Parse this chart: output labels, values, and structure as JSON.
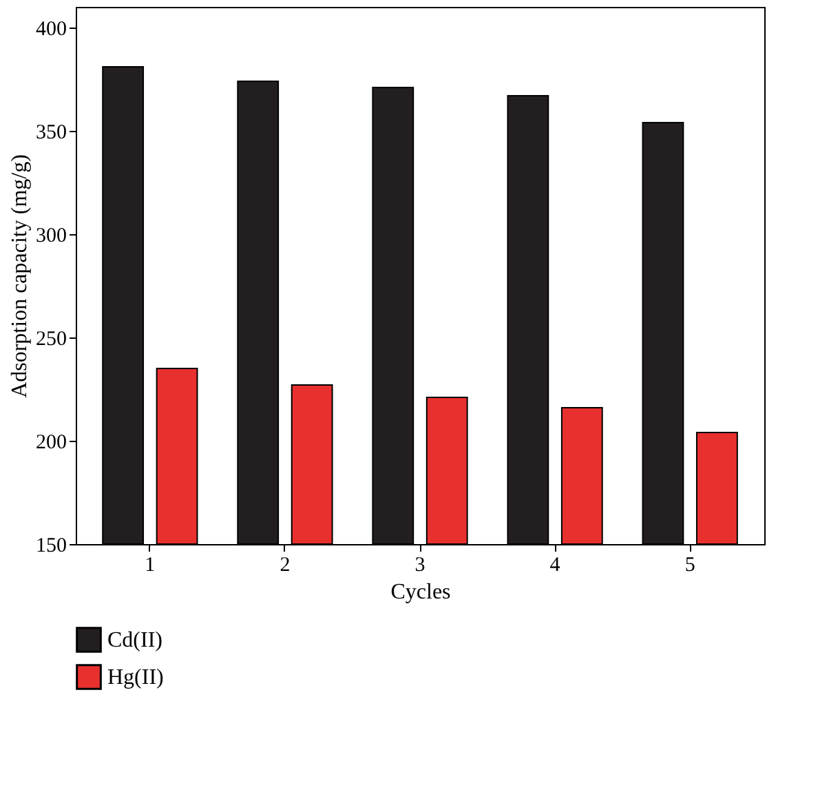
{
  "chart_data": {
    "type": "bar",
    "xlabel": "Cycles",
    "ylabel": "Adsorption capacity (mg/g)",
    "categories": [
      "1",
      "2",
      "3",
      "4",
      "5"
    ],
    "series": [
      {
        "name": "Cd(II)",
        "color": "#231f20",
        "values": [
          381,
          374,
          371,
          367,
          354
        ]
      },
      {
        "name": "Hg(II)",
        "color": "#e8312f",
        "values": [
          235,
          227,
          221,
          216,
          204
        ]
      }
    ],
    "ylim": [
      150,
      410
    ],
    "yticks": [
      150,
      200,
      250,
      300,
      350,
      400
    ],
    "grid": false,
    "legend": "bottom left"
  }
}
